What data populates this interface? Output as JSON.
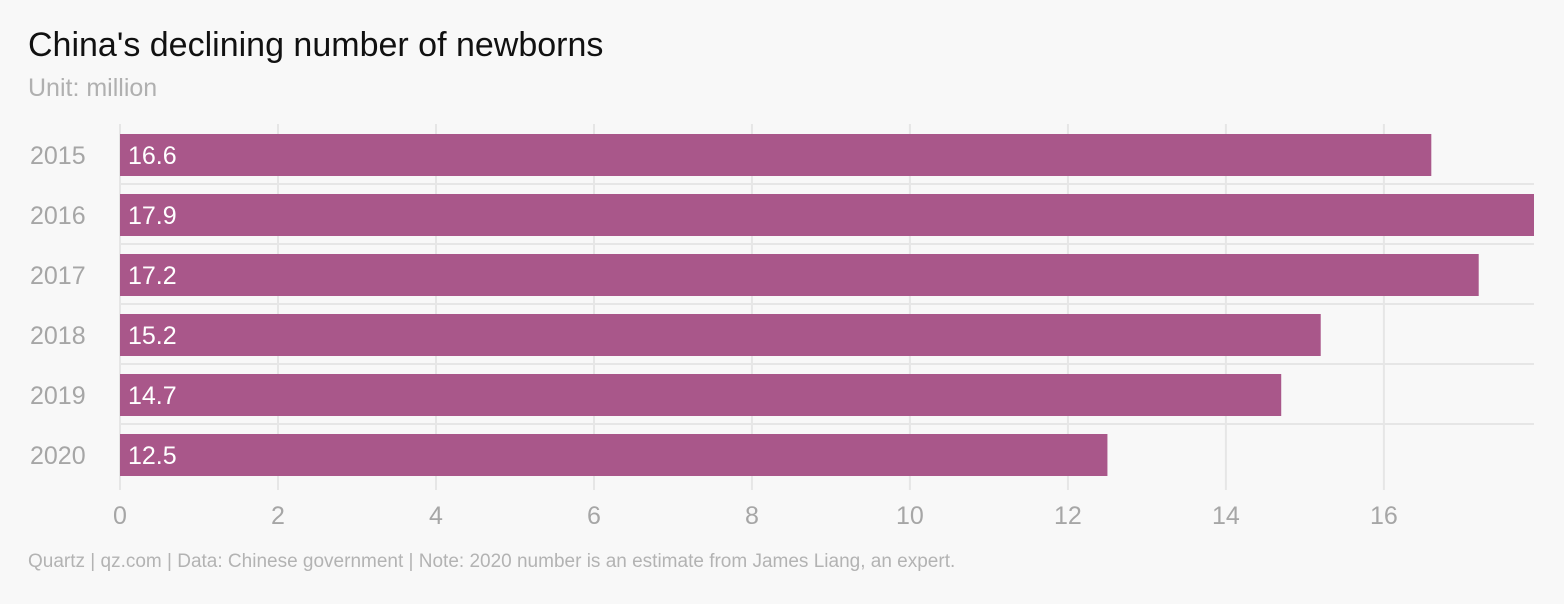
{
  "chart_data": {
    "type": "bar",
    "orientation": "horizontal",
    "title": "China's declining number of newborns",
    "subtitle": "Unit: million",
    "categories": [
      "2015",
      "2016",
      "2017",
      "2018",
      "2019",
      "2020"
    ],
    "values": [
      16.6,
      17.9,
      17.2,
      15.2,
      14.7,
      12.5
    ],
    "value_labels": [
      "16.6",
      "17.9",
      "17.2",
      "15.2",
      "14.7",
      "12.5"
    ],
    "xticks": [
      0,
      2,
      4,
      6,
      8,
      10,
      12,
      14,
      16
    ],
    "xlim": [
      0,
      17.9
    ],
    "grid": true,
    "xlabel": "",
    "ylabel": "",
    "bar_color": "#a9578a"
  },
  "footer": "Quartz | qz.com | Data: Chinese government | Note: 2020 number is an estimate from James Liang, an expert."
}
